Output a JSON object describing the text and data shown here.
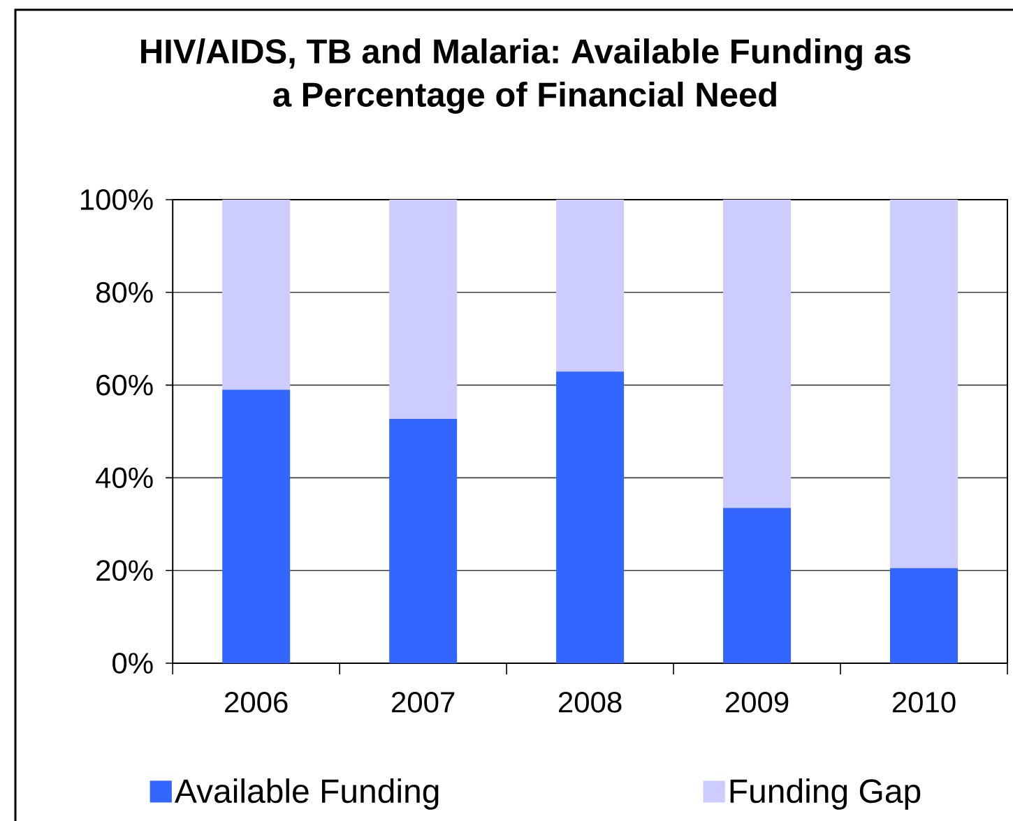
{
  "chart_data": {
    "type": "bar",
    "title": "HIV/AIDS, TB and Malaria: Available Funding as a Percentage of Financial Need",
    "categories": [
      "2006",
      "2007",
      "2008",
      "2009",
      "2010"
    ],
    "stacked": true,
    "series": [
      {
        "name": "Available Funding",
        "color": "#3366ff",
        "values": [
          59,
          52.7,
          62.9,
          33.5,
          20.5
        ]
      },
      {
        "name": "Funding Gap",
        "color": "#ccccff",
        "values": [
          41,
          47.3,
          37.1,
          66.5,
          79.5
        ]
      }
    ],
    "ylim": [
      0,
      100
    ],
    "yticks": [
      {
        "value": 0,
        "label": "0%"
      },
      {
        "value": 20,
        "label": "20%"
      },
      {
        "value": 40,
        "label": "40%"
      },
      {
        "value": 60,
        "label": "60%"
      },
      {
        "value": 80,
        "label": "80%"
      },
      {
        "value": 100,
        "label": "100%"
      }
    ],
    "grid": "y",
    "legend": "bottom"
  }
}
